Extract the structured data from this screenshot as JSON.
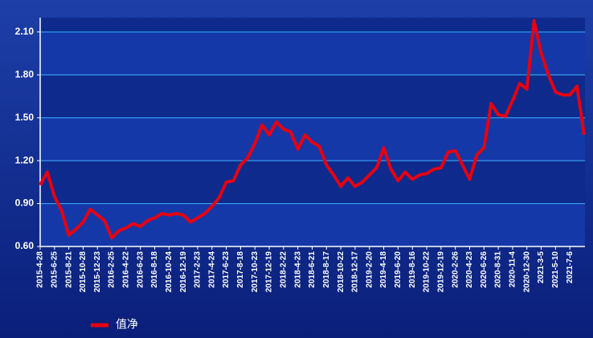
{
  "chart_data": {
    "type": "line",
    "categories": [
      "2015-4-28",
      null,
      "2015-6-25",
      null,
      "2015-8-21",
      null,
      "2015-10-28",
      null,
      "2015-12-23",
      null,
      "2016-2-25",
      null,
      "2016-4-22",
      null,
      "2016-6-23",
      null,
      "2016-8-18",
      null,
      "2016-10-24",
      null,
      "2016-12-19",
      null,
      "2017-2-23",
      null,
      "2017-4-24",
      null,
      "2017-6-23",
      null,
      "2017-8-18",
      null,
      "2017-10-23",
      null,
      "2017-12-19",
      null,
      "2018-2-22",
      null,
      "2018-4-23",
      null,
      "2018-6-21",
      null,
      "2018-8-17",
      null,
      "2018-10-22",
      null,
      "2018-12-17",
      null,
      "2019-2-20",
      null,
      "2019-4-18",
      null,
      "2019-6-20",
      null,
      "2019-8-16",
      null,
      "2019-10-22",
      null,
      "2019-12-19",
      null,
      "2020-2-26",
      null,
      "2020-4-23",
      null,
      "2020-6-26",
      null,
      "2020-8-31",
      null,
      "2020-11-4",
      null,
      "2020-12-30",
      null,
      "2021-3-5",
      null,
      "2021-5-10",
      null,
      "2021-7-6",
      null,
      null
    ],
    "series": [
      {
        "name": "值净",
        "color": "#e60012",
        "values": [
          1.03,
          1.12,
          0.95,
          0.85,
          0.68,
          0.72,
          0.77,
          0.86,
          0.82,
          0.78,
          0.66,
          0.71,
          0.73,
          0.76,
          0.74,
          0.78,
          0.8,
          0.83,
          0.82,
          0.83,
          0.82,
          0.77,
          0.8,
          0.83,
          0.88,
          0.94,
          1.05,
          1.06,
          1.17,
          1.22,
          1.32,
          1.45,
          1.38,
          1.47,
          1.42,
          1.4,
          1.28,
          1.38,
          1.33,
          1.3,
          1.17,
          1.1,
          1.02,
          1.08,
          1.02,
          1.05,
          1.1,
          1.15,
          1.29,
          1.14,
          1.06,
          1.12,
          1.07,
          1.1,
          1.11,
          1.14,
          1.15,
          1.26,
          1.27,
          1.17,
          1.07,
          1.24,
          1.29,
          1.6,
          1.52,
          1.51,
          1.62,
          1.74,
          1.7,
          2.18,
          1.95,
          1.8,
          1.68,
          1.66,
          1.66,
          1.72,
          1.38
        ]
      }
    ],
    "ylim": [
      0.6,
      2.2
    ],
    "yticks": [
      {
        "value": 0.6,
        "label": "0.60"
      },
      {
        "value": 0.9,
        "label": "0.90"
      },
      {
        "value": 1.2,
        "label": "1.20"
      },
      {
        "value": 1.5,
        "label": "1.50"
      },
      {
        "value": 1.8,
        "label": "1.80"
      },
      {
        "value": 2.1,
        "label": "2.10"
      }
    ],
    "grid": true
  }
}
